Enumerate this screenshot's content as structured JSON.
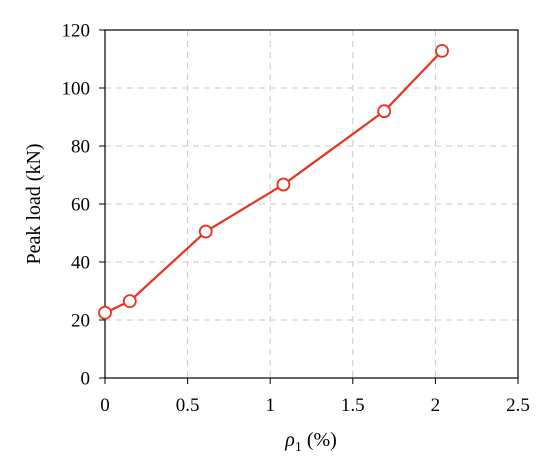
{
  "chart_data": {
    "type": "line",
    "title": "",
    "xlabel": "ρ1 (%)",
    "xlabel_parts": {
      "symbol": "ρ",
      "subscript": "1",
      "unit": " (%)"
    },
    "ylabel": "Peak load (kN)",
    "xlim": [
      0,
      2.5
    ],
    "ylim": [
      0,
      120
    ],
    "x_ticks": [
      0,
      0.5,
      1,
      1.5,
      2,
      2.5
    ],
    "x_tick_labels": [
      "0",
      "0.5",
      "1",
      "1.5",
      "2",
      "2.5"
    ],
    "y_ticks": [
      0,
      20,
      40,
      60,
      80,
      100,
      120
    ],
    "y_tick_labels": [
      "0",
      "20",
      "40",
      "60",
      "80",
      "100",
      "120"
    ],
    "grid": true,
    "series": [
      {
        "color": "#e8321e",
        "marker": "open-circle",
        "x": [
          0,
          0.15,
          0.61,
          1.08,
          1.69,
          2.04
        ],
        "y": [
          22.5,
          26.5,
          50.5,
          66.7,
          92.0,
          112.8
        ]
      }
    ]
  }
}
